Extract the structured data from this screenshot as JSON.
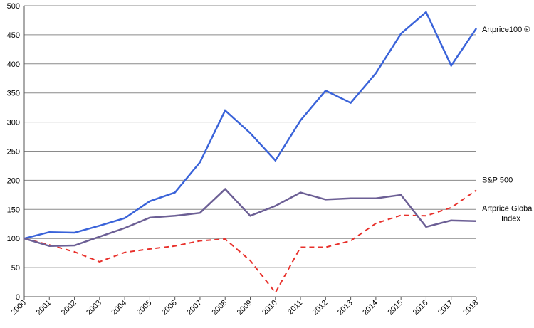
{
  "chart_data": {
    "type": "line",
    "title": "",
    "xlabel": "",
    "ylabel": "",
    "x": [
      2000,
      2001,
      2002,
      2003,
      2004,
      2005,
      2006,
      2007,
      2008,
      2009,
      2010,
      2011,
      2012,
      2013,
      2014,
      2015,
      2016,
      2017,
      2018
    ],
    "x_tick_labels": [
      "2000",
      "2001",
      "2002",
      "2003",
      "2004",
      "2005",
      "2006",
      "2007",
      "2008",
      "2009",
      "2010",
      "2011",
      "2012",
      "2013",
      "2014",
      "2015",
      "2016",
      "2017",
      "2018"
    ],
    "ylim": [
      0,
      500
    ],
    "y_ticks": [
      0,
      50,
      100,
      150,
      200,
      250,
      300,
      350,
      400,
      450,
      500
    ],
    "grid": "horizontal",
    "legend": "labels at right end of lines",
    "series": [
      {
        "name": "Artprice100 ®",
        "color": "#3a63d9",
        "style": "solid",
        "values": [
          100,
          111,
          110,
          122,
          135,
          164,
          179,
          231,
          320,
          281,
          234,
          303,
          354,
          333,
          384,
          452,
          489,
          397,
          461
        ]
      },
      {
        "name": "S&P 500",
        "color": "#e8302b",
        "style": "dashed",
        "values": [
          100,
          89,
          77,
          60,
          76,
          82,
          87,
          96,
          99,
          62,
          7,
          85,
          85,
          96,
          126,
          140,
          139,
          153,
          183
        ]
      },
      {
        "name": "Artprice Global\nIndex",
        "label_lines": [
          "Artprice Global",
          "Index"
        ],
        "color": "#6c5f95",
        "style": "solid",
        "values": [
          100,
          87,
          88,
          103,
          118,
          136,
          139,
          144,
          185,
          139,
          156,
          179,
          167,
          169,
          169,
          175,
          120,
          131,
          130
        ]
      }
    ]
  }
}
